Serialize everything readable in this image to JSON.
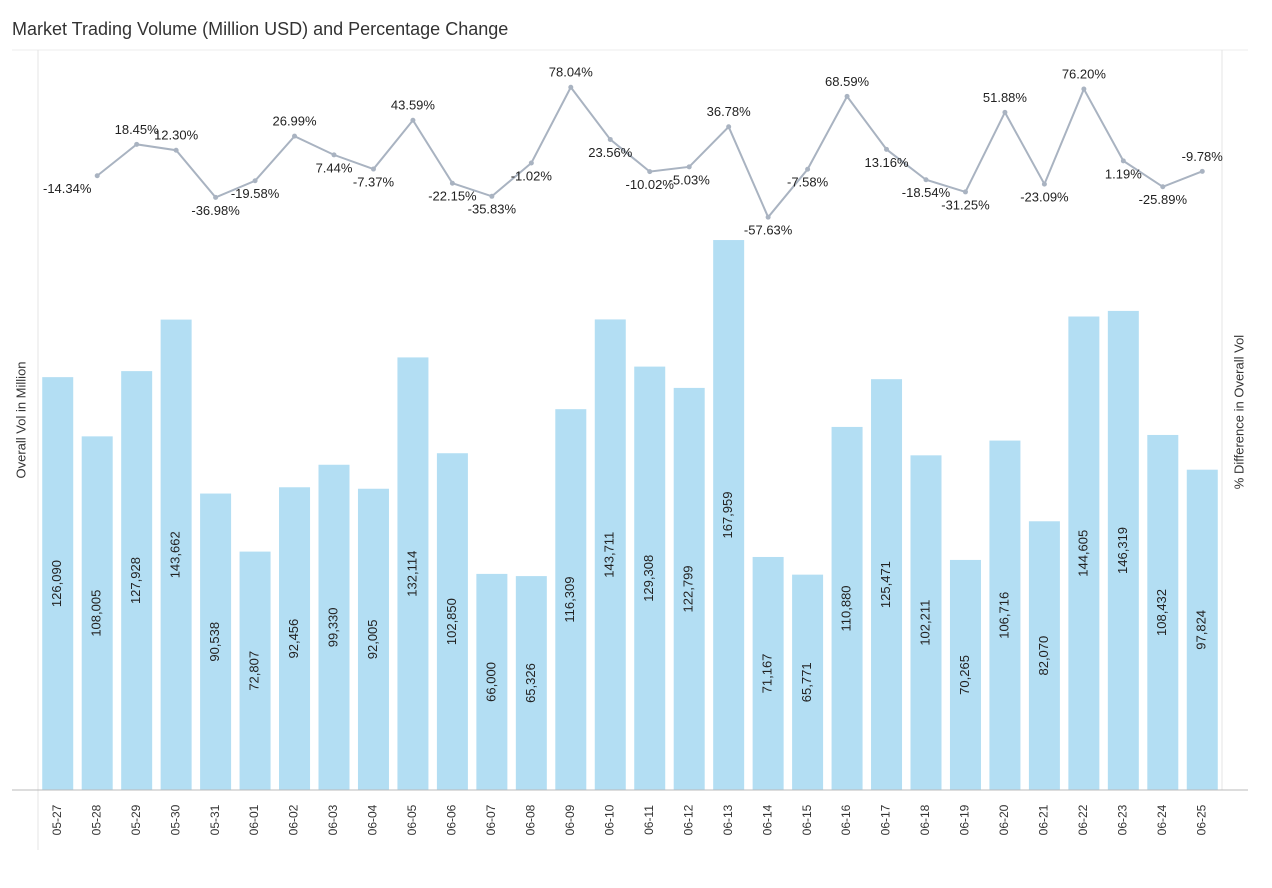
{
  "chart_data": {
    "type": "bar_line",
    "title": "Market Trading Volume (Million USD) and Percentage Change",
    "y_label": "Overall Vol in Million",
    "y2_label": "% Difference in Overall Vol",
    "categories": [
      "05-27",
      "05-28",
      "05-29",
      "05-30",
      "05-31",
      "06-01",
      "06-02",
      "06-03",
      "06-04",
      "06-05",
      "06-06",
      "06-07",
      "06-08",
      "06-09",
      "06-10",
      "06-11",
      "06-12",
      "06-13",
      "06-14",
      "06-15",
      "06-16",
      "06-17",
      "06-18",
      "06-19",
      "06-20",
      "06-21",
      "06-22",
      "06-23",
      "06-24",
      "06-25"
    ],
    "series": [
      {
        "name": "Overall Vol in Million",
        "type": "bar",
        "color": "#b3def3",
        "values": [
          126090,
          108005,
          127928,
          143662,
          90538,
          72807,
          92456,
          99330,
          92005,
          132114,
          102850,
          66000,
          65326,
          116309,
          143711,
          129308,
          122799,
          167959,
          71167,
          65771,
          110880,
          125471,
          102211,
          70265,
          106716,
          82070,
          144605,
          146319,
          108432,
          97824
        ],
        "value_labels": [
          "126,090",
          "108,005",
          "127,928",
          "143,662",
          "90,538",
          "72,807",
          "92,456",
          "99,330",
          "92,005",
          "132,114",
          "102,850",
          "66,000",
          "65,326",
          "116,309",
          "143,711",
          "129,308",
          "122,799",
          "167,959",
          "71,167",
          "65,771",
          "110,880",
          "125,471",
          "102,211",
          "70,265",
          "106,716",
          "82,070",
          "144,605",
          "146,319",
          "108,432",
          "97,824"
        ]
      },
      {
        "name": "% Difference in Overall Vol",
        "type": "line",
        "axis": "y2",
        "color": "#a9b3c1",
        "values": [
          null,
          -14.34,
          18.45,
          12.3,
          -36.98,
          -19.58,
          26.99,
          7.44,
          -7.37,
          43.59,
          -22.15,
          -35.83,
          -1.02,
          78.04,
          23.56,
          -10.02,
          -5.03,
          36.78,
          -57.63,
          -7.58,
          68.59,
          13.16,
          -18.54,
          -31.25,
          51.88,
          -23.09,
          76.2,
          1.19,
          -25.89,
          -9.78
        ],
        "value_labels": [
          null,
          "-14.34%",
          "18.45%",
          "12.30%",
          "-36.98%",
          "-19.58%",
          "26.99%",
          "7.44%",
          "-7.37%",
          "43.59%",
          "-22.15%",
          "-35.83%",
          "-1.02%",
          "78.04%",
          "23.56%",
          "-10.02%",
          "-5.03%",
          "36.78%",
          "-57.63%",
          "-7.58%",
          "68.59%",
          "13.16%",
          "-18.54%",
          "-31.25%",
          "51.88%",
          "-23.09%",
          "76.20%",
          "1.19%",
          "-25.89%",
          "-9.78%"
        ]
      }
    ],
    "ylim": [
      0,
      226000
    ],
    "y2lim": [
      -656,
      117
    ]
  }
}
